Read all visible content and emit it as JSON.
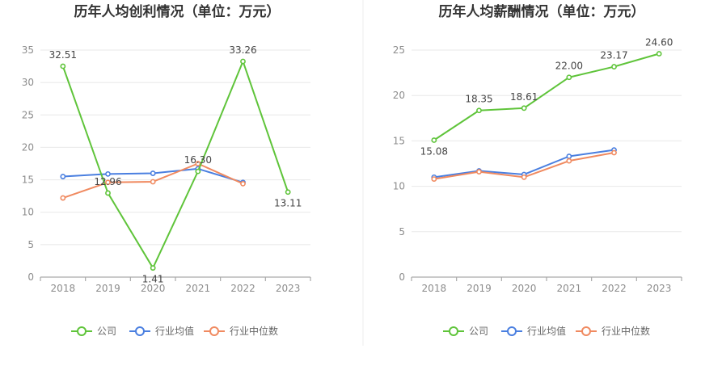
{
  "chart_data": [
    {
      "type": "line",
      "title": "历年人均创利情况（单位：万元）",
      "categories": [
        "2018",
        "2019",
        "2020",
        "2021",
        "2022",
        "2023"
      ],
      "ylim": [
        0,
        35
      ],
      "yticks": [
        0,
        5,
        10,
        15,
        20,
        25,
        30,
        35
      ],
      "grid": true,
      "legend_position": "bottom",
      "series": [
        {
          "name": "公司",
          "color": "#5fc43a",
          "values": [
            32.51,
            12.96,
            1.41,
            16.3,
            33.26,
            13.11
          ],
          "labels": [
            "32.51",
            "12.96",
            "1.41",
            "16.30",
            "33.26",
            "13.11"
          ]
        },
        {
          "name": "行业均值",
          "color": "#4a7fe0",
          "values": [
            15.5,
            15.9,
            16.0,
            16.7,
            14.6,
            null
          ]
        },
        {
          "name": "行业中位数",
          "color": "#f08a60",
          "values": [
            12.2,
            14.6,
            14.7,
            17.5,
            14.4,
            null
          ]
        }
      ]
    },
    {
      "type": "line",
      "title": "历年人均薪酬情况（单位：万元）",
      "categories": [
        "2018",
        "2019",
        "2020",
        "2021",
        "2022",
        "2023"
      ],
      "ylim": [
        0,
        25
      ],
      "yticks": [
        0,
        5,
        10,
        15,
        20,
        25
      ],
      "grid": true,
      "legend_position": "bottom",
      "series": [
        {
          "name": "公司",
          "color": "#5fc43a",
          "values": [
            15.08,
            18.35,
            18.61,
            22.0,
            23.17,
            24.6
          ],
          "labels": [
            "15.08",
            "18.35",
            "18.61",
            "22.00",
            "23.17",
            "24.60"
          ]
        },
        {
          "name": "行业均值",
          "color": "#4a7fe0",
          "values": [
            11.0,
            11.7,
            11.3,
            13.3,
            14.0,
            null
          ]
        },
        {
          "name": "行业中位数",
          "color": "#f08a60",
          "values": [
            10.8,
            11.6,
            11.0,
            12.8,
            13.7,
            null
          ]
        }
      ]
    }
  ]
}
